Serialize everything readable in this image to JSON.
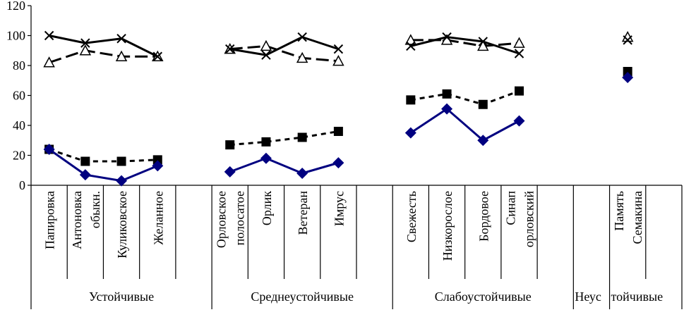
{
  "chart_data": {
    "type": "line",
    "title": "",
    "xlabel": "",
    "ylabel": "",
    "ylim": [
      0,
      120
    ],
    "yticks": [
      "0",
      "20",
      "40",
      "60",
      "80",
      "100",
      "120"
    ],
    "grid": false,
    "legend": "none",
    "categories": [
      [
        "Папировка"
      ],
      [
        "Антоновка",
        "обыкн."
      ],
      [
        "Куликовское"
      ],
      [
        "Желанное"
      ],
      [],
      [
        "Орловское",
        "полосатое"
      ],
      [
        "Орлик"
      ],
      [
        "Ветеран"
      ],
      [
        "Имрус"
      ],
      [],
      [
        "Свежесть"
      ],
      [
        "Низкорослое"
      ],
      [
        "Бордовое"
      ],
      [
        "Синап",
        "орловский"
      ],
      [],
      [],
      [
        "Память",
        "Семакина"
      ],
      []
    ],
    "groups": [
      {
        "label": "Устойчивые"
      },
      {
        "label": "Среднеустойчивые"
      },
      {
        "label": "Слабоустойчивые"
      },
      {
        "label": "Неус"
      },
      {
        "label": "тойчивые"
      }
    ],
    "series": [
      {
        "name": "series-cross",
        "values": [
          100,
          95,
          98,
          86,
          null,
          91,
          87,
          99,
          91,
          null,
          93,
          99,
          96,
          88,
          null,
          null,
          97,
          null
        ]
      },
      {
        "name": "series-triangle",
        "values": [
          82,
          90,
          86,
          86,
          null,
          91,
          93,
          85,
          83,
          null,
          97,
          97,
          93,
          95,
          null,
          null,
          99,
          null
        ]
      },
      {
        "name": "series-square",
        "values": [
          24,
          16,
          16,
          17,
          null,
          27,
          29,
          32,
          36,
          null,
          57,
          61,
          54,
          63,
          null,
          null,
          76,
          null
        ]
      },
      {
        "name": "series-diamond",
        "values": [
          24,
          7,
          3,
          13,
          null,
          9,
          18,
          8,
          15,
          null,
          35,
          51,
          30,
          43,
          null,
          null,
          72,
          null
        ]
      }
    ]
  }
}
